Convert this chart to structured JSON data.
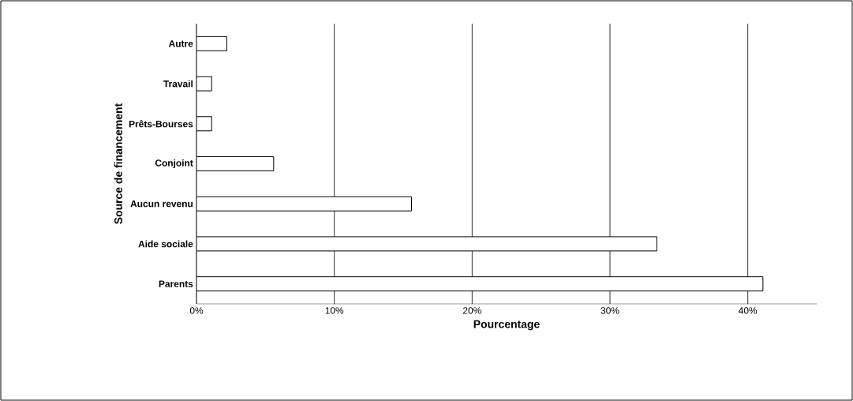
{
  "chart_data": {
    "type": "bar",
    "orientation": "horizontal",
    "categories": [
      "Autre",
      "Travail",
      "Prêts-Bourses",
      "Conjoint",
      "Aucun revenu",
      "Aide sociale",
      "Parents"
    ],
    "values": [
      2.2,
      1.1,
      1.1,
      5.6,
      15.6,
      33.4,
      41.1
    ],
    "color": "#ffffff",
    "xlim": [
      0,
      45
    ],
    "xticks": [
      {
        "value": 0,
        "label": "0%"
      },
      {
        "value": 10,
        "label": "10%"
      },
      {
        "value": 20,
        "label": "20%"
      },
      {
        "value": 30,
        "label": "30%"
      },
      {
        "value": 40,
        "label": "40%"
      }
    ],
    "grid": "x",
    "xlabel": "Pourcentage",
    "ylabel": "Source de financement"
  }
}
